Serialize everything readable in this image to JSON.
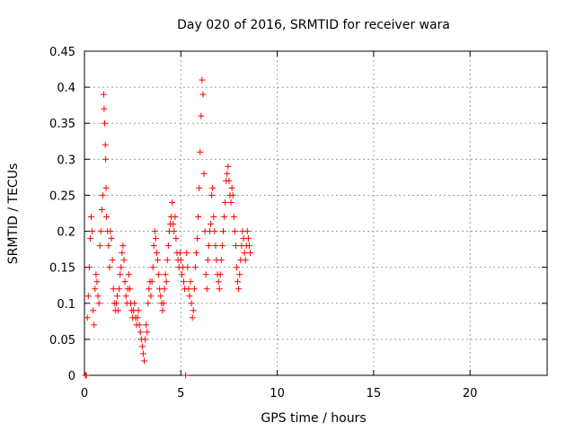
{
  "chart_data": {
    "type": "scatter",
    "title": "Day 020 of 2016, SRMTID for receiver wara",
    "xlabel": "GPS time / hours",
    "ylabel": "SRMTID / TECUs",
    "xlim": [
      0,
      24
    ],
    "ylim": [
      0,
      0.45
    ],
    "x_ticks": [
      0,
      5,
      10,
      15,
      20
    ],
    "x_tick_labels": [
      "0",
      "5",
      "10",
      "15",
      "20"
    ],
    "y_ticks": [
      0,
      0.05,
      0.1,
      0.15,
      0.2,
      0.25,
      0.3,
      0.35,
      0.4,
      0.45
    ],
    "y_tick_labels": [
      "0",
      "0.05",
      "0.1",
      "0.15",
      "0.2",
      "0.25",
      "0.3",
      "0.35",
      "0.4",
      "0.45"
    ],
    "grid": true,
    "marker": "+",
    "color": "#ff0000",
    "series": [
      {
        "name": "SRMTID",
        "points": [
          [
            0.05,
            0.0
          ],
          [
            0.1,
            0.0
          ],
          [
            0.15,
            0.08
          ],
          [
            0.2,
            0.11
          ],
          [
            0.25,
            0.15
          ],
          [
            0.3,
            0.19
          ],
          [
            0.35,
            0.22
          ],
          [
            0.4,
            0.2
          ],
          [
            0.45,
            0.09
          ],
          [
            0.5,
            0.07
          ],
          [
            0.55,
            0.12
          ],
          [
            0.6,
            0.14
          ],
          [
            0.65,
            0.13
          ],
          [
            0.7,
            0.11
          ],
          [
            0.75,
            0.1
          ],
          [
            0.8,
            0.18
          ],
          [
            0.85,
            0.2
          ],
          [
            0.9,
            0.23
          ],
          [
            0.95,
            0.25
          ],
          [
            1.0,
            0.39
          ],
          [
            1.02,
            0.37
          ],
          [
            1.05,
            0.35
          ],
          [
            1.08,
            0.32
          ],
          [
            1.1,
            0.3
          ],
          [
            1.12,
            0.26
          ],
          [
            1.15,
            0.22
          ],
          [
            1.2,
            0.2
          ],
          [
            1.25,
            0.18
          ],
          [
            1.3,
            0.15
          ],
          [
            1.35,
            0.2
          ],
          [
            1.4,
            0.19
          ],
          [
            1.45,
            0.16
          ],
          [
            1.5,
            0.12
          ],
          [
            1.55,
            0.1
          ],
          [
            1.6,
            0.09
          ],
          [
            1.65,
            0.1
          ],
          [
            1.7,
            0.11
          ],
          [
            1.75,
            0.09
          ],
          [
            1.8,
            0.12
          ],
          [
            1.85,
            0.14
          ],
          [
            1.9,
            0.15
          ],
          [
            1.95,
            0.17
          ],
          [
            2.0,
            0.18
          ],
          [
            2.05,
            0.16
          ],
          [
            2.1,
            0.13
          ],
          [
            2.15,
            0.11
          ],
          [
            2.2,
            0.1
          ],
          [
            2.25,
            0.12
          ],
          [
            2.3,
            0.14
          ],
          [
            2.35,
            0.12
          ],
          [
            2.4,
            0.1
          ],
          [
            2.45,
            0.09
          ],
          [
            2.5,
            0.08
          ],
          [
            2.55,
            0.09
          ],
          [
            2.6,
            0.1
          ],
          [
            2.65,
            0.08
          ],
          [
            2.7,
            0.07
          ],
          [
            2.75,
            0.08
          ],
          [
            2.8,
            0.09
          ],
          [
            2.85,
            0.07
          ],
          [
            2.9,
            0.06
          ],
          [
            2.95,
            0.05
          ],
          [
            3.0,
            0.04
          ],
          [
            3.05,
            0.03
          ],
          [
            3.1,
            0.02
          ],
          [
            3.15,
            0.05
          ],
          [
            3.2,
            0.07
          ],
          [
            3.25,
            0.06
          ],
          [
            3.3,
            0.1
          ],
          [
            3.35,
            0.12
          ],
          [
            3.4,
            0.13
          ],
          [
            3.45,
            0.11
          ],
          [
            3.5,
            0.13
          ],
          [
            3.55,
            0.15
          ],
          [
            3.6,
            0.18
          ],
          [
            3.65,
            0.2
          ],
          [
            3.7,
            0.19
          ],
          [
            3.75,
            0.17
          ],
          [
            3.8,
            0.16
          ],
          [
            3.85,
            0.14
          ],
          [
            3.9,
            0.12
          ],
          [
            3.95,
            0.11
          ],
          [
            4.0,
            0.1
          ],
          [
            4.05,
            0.09
          ],
          [
            4.1,
            0.1
          ],
          [
            4.15,
            0.12
          ],
          [
            4.2,
            0.14
          ],
          [
            4.25,
            0.13
          ],
          [
            4.3,
            0.16
          ],
          [
            4.35,
            0.18
          ],
          [
            4.4,
            0.2
          ],
          [
            4.45,
            0.21
          ],
          [
            4.5,
            0.22
          ],
          [
            4.55,
            0.24
          ],
          [
            4.6,
            0.21
          ],
          [
            4.65,
            0.2
          ],
          [
            4.7,
            0.22
          ],
          [
            4.75,
            0.19
          ],
          [
            4.8,
            0.17
          ],
          [
            4.85,
            0.16
          ],
          [
            4.9,
            0.15
          ],
          [
            4.95,
            0.17
          ],
          [
            5.0,
            0.16
          ],
          [
            5.05,
            0.14
          ],
          [
            5.1,
            0.15
          ],
          [
            5.15,
            0.13
          ],
          [
            5.2,
            0.12
          ],
          [
            5.25,
            0.0
          ],
          [
            5.3,
            0.17
          ],
          [
            5.35,
            0.15
          ],
          [
            5.4,
            0.12
          ],
          [
            5.45,
            0.11
          ],
          [
            5.5,
            0.13
          ],
          [
            5.55,
            0.1
          ],
          [
            5.6,
            0.08
          ],
          [
            5.65,
            0.09
          ],
          [
            5.7,
            0.12
          ],
          [
            5.75,
            0.15
          ],
          [
            5.8,
            0.17
          ],
          [
            5.85,
            0.19
          ],
          [
            5.9,
            0.22
          ],
          [
            5.95,
            0.26
          ],
          [
            6.0,
            0.31
          ],
          [
            6.05,
            0.36
          ],
          [
            6.1,
            0.41
          ],
          [
            6.15,
            0.39
          ],
          [
            6.2,
            0.28
          ],
          [
            6.25,
            0.2
          ],
          [
            6.3,
            0.14
          ],
          [
            6.35,
            0.12
          ],
          [
            6.4,
            0.16
          ],
          [
            6.45,
            0.18
          ],
          [
            6.5,
            0.2
          ],
          [
            6.55,
            0.21
          ],
          [
            6.6,
            0.25
          ],
          [
            6.65,
            0.26
          ],
          [
            6.7,
            0.22
          ],
          [
            6.75,
            0.2
          ],
          [
            6.8,
            0.18
          ],
          [
            6.85,
            0.16
          ],
          [
            6.9,
            0.14
          ],
          [
            6.95,
            0.13
          ],
          [
            7.0,
            0.12
          ],
          [
            7.05,
            0.14
          ],
          [
            7.1,
            0.16
          ],
          [
            7.15,
            0.18
          ],
          [
            7.2,
            0.2
          ],
          [
            7.25,
            0.22
          ],
          [
            7.3,
            0.24
          ],
          [
            7.35,
            0.27
          ],
          [
            7.4,
            0.28
          ],
          [
            7.45,
            0.29
          ],
          [
            7.5,
            0.27
          ],
          [
            7.55,
            0.25
          ],
          [
            7.6,
            0.24
          ],
          [
            7.65,
            0.26
          ],
          [
            7.7,
            0.25
          ],
          [
            7.75,
            0.22
          ],
          [
            7.8,
            0.2
          ],
          [
            7.85,
            0.18
          ],
          [
            7.9,
            0.15
          ],
          [
            7.95,
            0.13
          ],
          [
            8.0,
            0.12
          ],
          [
            8.05,
            0.14
          ],
          [
            8.1,
            0.16
          ],
          [
            8.15,
            0.18
          ],
          [
            8.2,
            0.2
          ],
          [
            8.25,
            0.19
          ],
          [
            8.3,
            0.17
          ],
          [
            8.35,
            0.16
          ],
          [
            8.4,
            0.18
          ],
          [
            8.45,
            0.2
          ],
          [
            8.5,
            0.19
          ],
          [
            8.55,
            0.18
          ],
          [
            8.6,
            0.17
          ]
        ]
      }
    ]
  }
}
